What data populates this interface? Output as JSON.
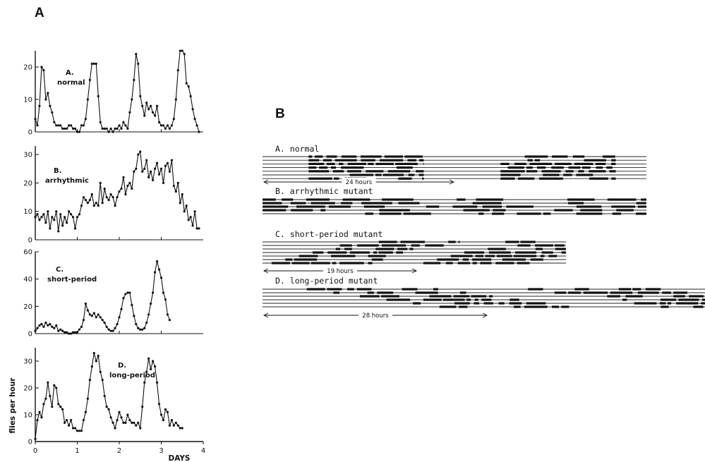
{
  "panel_a_label": "A",
  "panel_b_label": "B",
  "chart_data": [
    {
      "type": "line",
      "title": "A.\nnormal",
      "title_line1": "A.",
      "title_line2": "normal",
      "ylabel": "",
      "xlabel": "",
      "ylim": [
        0,
        25
      ],
      "yticks": [
        0,
        10,
        20
      ],
      "xlim": [
        0,
        4
      ],
      "x": [
        0.0,
        0.05,
        0.1,
        0.15,
        0.2,
        0.25,
        0.3,
        0.35,
        0.4,
        0.45,
        0.5,
        0.55,
        0.6,
        0.65,
        0.7,
        0.75,
        0.8,
        0.85,
        0.9,
        0.95,
        1.0,
        1.05,
        1.1,
        1.15,
        1.2,
        1.25,
        1.3,
        1.35,
        1.4,
        1.45,
        1.5,
        1.55,
        1.6,
        1.65,
        1.7,
        1.75,
        1.8,
        1.85,
        1.9,
        1.95,
        2.0,
        2.05,
        2.1,
        2.15,
        2.2,
        2.25,
        2.3,
        2.35,
        2.4,
        2.45,
        2.5,
        2.55,
        2.6,
        2.65,
        2.7,
        2.75,
        2.8,
        2.85,
        2.9,
        2.95,
        3.0,
        3.05,
        3.1,
        3.15,
        3.2,
        3.25,
        3.3,
        3.35,
        3.4,
        3.45,
        3.5,
        3.55,
        3.6,
        3.65,
        3.7,
        3.75,
        3.8,
        3.85,
        3.9
      ],
      "values": [
        4,
        2,
        8,
        20,
        19,
        10,
        12,
        8,
        6,
        3,
        2,
        2,
        2,
        1,
        1,
        1,
        2,
        2,
        1,
        1,
        0,
        0,
        2,
        2,
        4,
        10,
        16,
        21,
        21,
        21,
        11,
        3,
        1,
        1,
        1,
        0,
        1,
        0,
        1,
        1,
        2,
        1,
        3,
        2,
        1,
        6,
        10,
        16,
        24,
        21,
        11,
        8,
        5,
        9,
        7,
        8,
        6,
        5,
        8,
        3,
        2,
        2,
        1,
        2,
        1,
        2,
        4,
        10,
        19,
        25,
        25,
        24,
        15,
        14,
        11,
        7,
        4,
        2,
        0
      ],
      "series_color": "#111111"
    },
    {
      "type": "line",
      "title_line1": "B.",
      "title_line2": "arrhythmic",
      "ylim": [
        0,
        33
      ],
      "yticks": [
        0,
        10,
        20,
        30
      ],
      "xlim": [
        0,
        4
      ],
      "x": [
        0.0,
        0.05,
        0.1,
        0.15,
        0.2,
        0.25,
        0.3,
        0.35,
        0.4,
        0.45,
        0.5,
        0.55,
        0.6,
        0.65,
        0.7,
        0.75,
        0.8,
        0.85,
        0.9,
        0.95,
        1.0,
        1.05,
        1.1,
        1.15,
        1.2,
        1.25,
        1.3,
        1.35,
        1.4,
        1.45,
        1.5,
        1.55,
        1.6,
        1.65,
        1.7,
        1.75,
        1.8,
        1.85,
        1.9,
        1.95,
        2.0,
        2.05,
        2.1,
        2.15,
        2.2,
        2.25,
        2.3,
        2.35,
        2.4,
        2.45,
        2.5,
        2.55,
        2.6,
        2.65,
        2.7,
        2.75,
        2.8,
        2.85,
        2.9,
        2.95,
        3.0,
        3.05,
        3.1,
        3.15,
        3.2,
        3.25,
        3.3,
        3.35,
        3.4,
        3.45,
        3.5,
        3.55,
        3.6,
        3.65,
        3.7,
        3.75,
        3.8,
        3.85,
        3.9
      ],
      "values": [
        8,
        9,
        7,
        8,
        9,
        6,
        10,
        4,
        8,
        7,
        10,
        3,
        9,
        5,
        8,
        6,
        10,
        9,
        8,
        4,
        8,
        9,
        12,
        15,
        14,
        13,
        14,
        16,
        12,
        13,
        12,
        20,
        13,
        18,
        15,
        14,
        16,
        15,
        12,
        15,
        17,
        18,
        22,
        16,
        19,
        20,
        18,
        24,
        25,
        30,
        31,
        24,
        25,
        28,
        22,
        24,
        21,
        25,
        27,
        23,
        25,
        20,
        26,
        27,
        24,
        28,
        19,
        17,
        20,
        13,
        16,
        10,
        12,
        7,
        8,
        5,
        10,
        4,
        4
      ],
      "series_color": "#111111"
    },
    {
      "type": "line",
      "title_line1": "C.",
      "title_line2": "short-period",
      "ylim": [
        0,
        60
      ],
      "yticks": [
        0,
        20,
        40,
        60
      ],
      "xlim": [
        0,
        4
      ],
      "x": [
        0.0,
        0.05,
        0.1,
        0.15,
        0.2,
        0.25,
        0.3,
        0.35,
        0.4,
        0.45,
        0.5,
        0.55,
        0.6,
        0.65,
        0.7,
        0.75,
        0.8,
        0.85,
        0.9,
        0.95,
        1.0,
        1.05,
        1.1,
        1.15,
        1.2,
        1.25,
        1.3,
        1.35,
        1.4,
        1.45,
        1.5,
        1.55,
        1.6,
        1.65,
        1.7,
        1.75,
        1.8,
        1.85,
        1.9,
        1.95,
        2.0,
        2.05,
        2.1,
        2.15,
        2.2,
        2.25,
        2.3,
        2.35,
        2.4,
        2.45,
        2.5,
        2.55,
        2.6,
        2.65,
        2.7,
        2.75,
        2.8,
        2.85,
        2.9,
        2.95,
        3.0,
        3.05,
        3.1,
        3.15,
        3.2
      ],
      "values": [
        2,
        4,
        6,
        7,
        5,
        8,
        6,
        7,
        5,
        4,
        6,
        2,
        3,
        2,
        1,
        1,
        0,
        0,
        1,
        1,
        1,
        3,
        5,
        10,
        22,
        17,
        14,
        13,
        15,
        12,
        14,
        12,
        10,
        8,
        5,
        3,
        2,
        2,
        4,
        7,
        12,
        18,
        26,
        29,
        30,
        30,
        21,
        13,
        7,
        4,
        3,
        3,
        4,
        8,
        14,
        22,
        30,
        45,
        53,
        47,
        41,
        30,
        25,
        14,
        10
      ],
      "series_color": "#111111"
    },
    {
      "type": "line",
      "title_line1": "D.",
      "title_line2": "long-period",
      "ylabel": "flies per hour",
      "xlabel": "DAYS",
      "ylim": [
        0,
        35
      ],
      "yticks": [
        0,
        10,
        20,
        30
      ],
      "xticks": [
        0,
        1,
        2,
        3,
        4
      ],
      "xlim": [
        0,
        4
      ],
      "x": [
        0.0,
        0.05,
        0.1,
        0.15,
        0.2,
        0.25,
        0.3,
        0.35,
        0.4,
        0.45,
        0.5,
        0.55,
        0.6,
        0.65,
        0.7,
        0.75,
        0.8,
        0.85,
        0.9,
        0.95,
        1.0,
        1.05,
        1.1,
        1.15,
        1.2,
        1.25,
        1.3,
        1.35,
        1.4,
        1.45,
        1.5,
        1.55,
        1.6,
        1.65,
        1.7,
        1.75,
        1.8,
        1.85,
        1.9,
        1.95,
        2.0,
        2.05,
        2.1,
        2.15,
        2.2,
        2.25,
        2.3,
        2.35,
        2.4,
        2.45,
        2.5,
        2.55,
        2.6,
        2.65,
        2.7,
        2.75,
        2.8,
        2.85,
        2.9,
        2.95,
        3.0,
        3.05,
        3.1,
        3.15,
        3.2,
        3.25,
        3.3,
        3.35,
        3.4,
        3.45,
        3.5
      ],
      "values": [
        1,
        8,
        11,
        9,
        14,
        16,
        22,
        17,
        13,
        21,
        20,
        14,
        13,
        12,
        7,
        8,
        6,
        8,
        5,
        5,
        4,
        4,
        4,
        8,
        11,
        16,
        23,
        28,
        33,
        30,
        32,
        26,
        23,
        17,
        13,
        12,
        9,
        7,
        5,
        8,
        11,
        9,
        7,
        7,
        10,
        8,
        7,
        7,
        6,
        7,
        5,
        13,
        22,
        26,
        31,
        27,
        30,
        28,
        22,
        14,
        10,
        8,
        12,
        11,
        6,
        8,
        6,
        7,
        6,
        5,
        5
      ],
      "series_color": "#111111"
    },
    {
      "type": "actogram",
      "rows": [
        {
          "label": "A.  normal",
          "arrow_label": "24 hours",
          "lines": 7,
          "period_hours": 24
        },
        {
          "label": "B.  arrhythmic  mutant",
          "lines": 5,
          "period_hours": 24
        },
        {
          "label": "C.  short-period  mutant",
          "arrow_label": "19 hours",
          "lines": 7,
          "period_hours": 19
        },
        {
          "label": "D.  long-period  mutant",
          "arrow_label": "28 hours",
          "lines": 6,
          "period_hours": 28
        }
      ]
    }
  ]
}
